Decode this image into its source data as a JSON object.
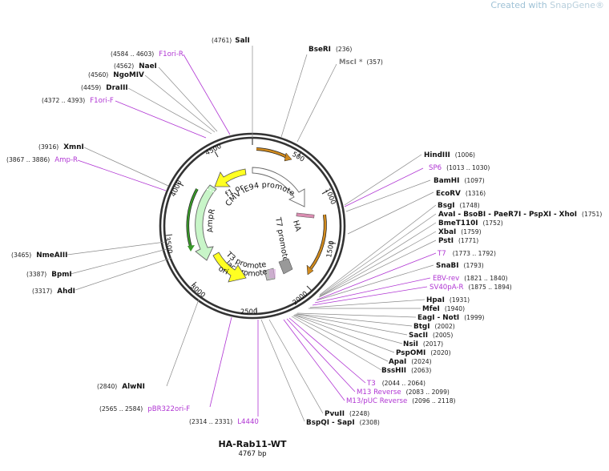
{
  "watermark": {
    "prefix": "Created with ",
    "brand": "SnapGene",
    "mark": "®"
  },
  "plasmid": {
    "name": "HA-Rab11-WT",
    "length_label": "4767 bp",
    "length": 4767
  },
  "ticks": [
    "500",
    "1000",
    "1500",
    "2000",
    "2500",
    "3000",
    "3500",
    "4000",
    "4500"
  ],
  "sites": [
    {
      "name": "SalI",
      "pos": "(4761)",
      "color": "black"
    },
    {
      "name": "BseRI",
      "pos": "(236)",
      "color": "black"
    },
    {
      "name": "MscI *",
      "pos": "(357)",
      "color": "gray"
    },
    {
      "name": "HindIII",
      "pos": "(1006)",
      "color": "black"
    },
    {
      "name": "SP6",
      "pos": "(1013 .. 1030)",
      "color": "purple"
    },
    {
      "name": "BamHI",
      "pos": "(1097)",
      "color": "black"
    },
    {
      "name": "EcoRV",
      "pos": "(1316)",
      "color": "black"
    },
    {
      "name": "BsgI",
      "pos": "(1748)",
      "color": "black"
    },
    {
      "name": "AvaI  - BsoBI  - PaeR7I  - PspXI  - XhoI",
      "pos": "(1751)",
      "color": "black"
    },
    {
      "name": "BmeT110I",
      "pos": "(1752)",
      "color": "black"
    },
    {
      "name": "XbaI",
      "pos": "(1759)",
      "color": "black"
    },
    {
      "name": "PstI",
      "pos": "(1771)",
      "color": "black"
    },
    {
      "name": "T7",
      "pos": "(1773 .. 1792)",
      "color": "purple"
    },
    {
      "name": "SnaBI",
      "pos": "(1793)",
      "color": "black"
    },
    {
      "name": "EBV-rev",
      "pos": "(1821 .. 1840)",
      "color": "purple"
    },
    {
      "name": "SV40pA-R",
      "pos": "(1875 .. 1894)",
      "color": "purple"
    },
    {
      "name": "HpaI",
      "pos": "(1931)",
      "color": "black"
    },
    {
      "name": "MfeI",
      "pos": "(1940)",
      "color": "black"
    },
    {
      "name": "EagI  - NotI",
      "pos": "(1999)",
      "color": "black"
    },
    {
      "name": "BtgI",
      "pos": "(2002)",
      "color": "black"
    },
    {
      "name": "SacII",
      "pos": "(2005)",
      "color": "black"
    },
    {
      "name": "NsiI",
      "pos": "(2017)",
      "color": "black"
    },
    {
      "name": "PspOMI",
      "pos": "(2020)",
      "color": "black"
    },
    {
      "name": "ApaI",
      "pos": "(2024)",
      "color": "black"
    },
    {
      "name": "BssHII",
      "pos": "(2063)",
      "color": "black"
    },
    {
      "name": "T3",
      "pos": "(2044 .. 2064)",
      "color": "purple"
    },
    {
      "name": "M13 Reverse",
      "pos": "(2083 .. 2099)",
      "color": "purple"
    },
    {
      "name": "M13/pUC Reverse",
      "pos": "(2096 .. 2118)",
      "color": "purple"
    },
    {
      "name": "PvuII",
      "pos": "(2248)",
      "color": "black"
    },
    {
      "name": "BspQI  - SapI",
      "pos": "(2308)",
      "color": "black"
    },
    {
      "name": "L4440",
      "pos": "(2314 .. 2331)",
      "color": "purple"
    },
    {
      "name": "pBR322ori-F",
      "pos": "(2565 .. 2584)",
      "color": "purple"
    },
    {
      "name": "AlwNI",
      "pos": "(2840)",
      "color": "black"
    },
    {
      "name": "AhdI",
      "pos": "(3317)",
      "color": "black"
    },
    {
      "name": "BpmI",
      "pos": "(3387)",
      "color": "black"
    },
    {
      "name": "NmeAIII",
      "pos": "(3465)",
      "color": "black"
    },
    {
      "name": "Amp-R",
      "pos": "(3867 .. 3886)",
      "color": "purple"
    },
    {
      "name": "XmnI",
      "pos": "(3916)",
      "color": "black"
    },
    {
      "name": "F1ori-F",
      "pos": "(4372 .. 4393)",
      "color": "purple"
    },
    {
      "name": "DraIII",
      "pos": "(4459)",
      "color": "black"
    },
    {
      "name": "NgoMIV",
      "pos": "(4560)",
      "color": "black"
    },
    {
      "name": "NaeI",
      "pos": "(4562)",
      "color": "black"
    },
    {
      "name": "F1ori-R",
      "pos": "(4584 .. 4603)",
      "color": "purple"
    }
  ],
  "features": {
    "cmv": "CMV IE94 promoter",
    "ha": "HA",
    "t7": "T7 promoter",
    "t3": "T3 promoter",
    "lac": "lac promoter",
    "ori": "ori",
    "ampr": "AmpR",
    "f1": "f1 ori"
  },
  "colors": {
    "purple": "#b035d3",
    "gray": "#7a7a7a",
    "orange": "#c8871a",
    "green": "#3a9a2a",
    "yellow": "#ffff22",
    "ampr_fill": "#c8f5c8"
  }
}
